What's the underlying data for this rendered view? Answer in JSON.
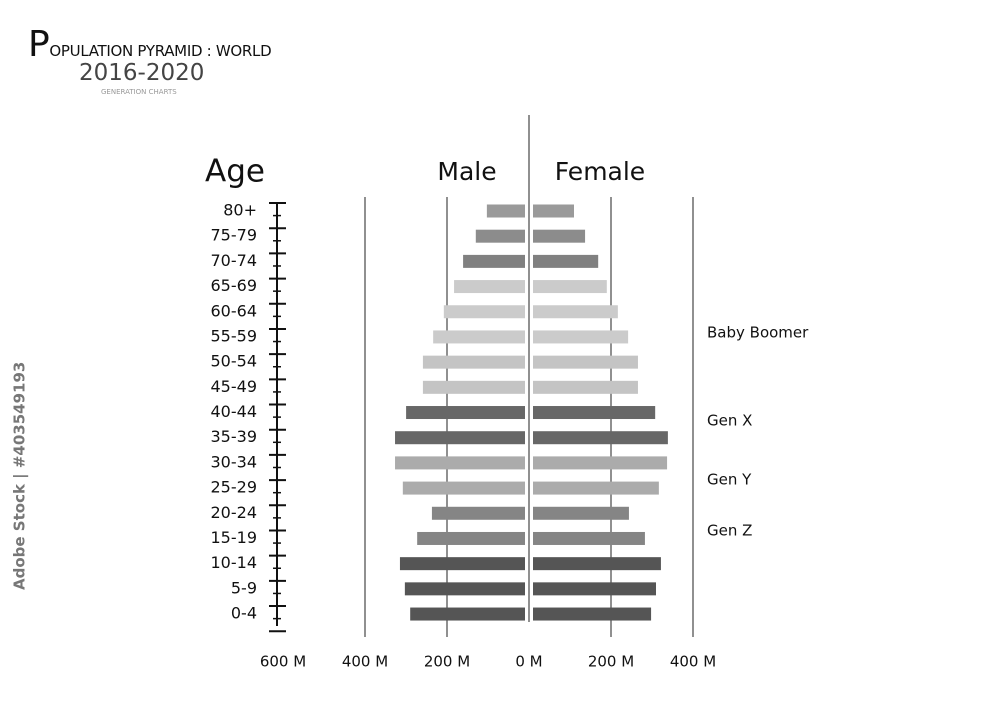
{
  "chart_data": {
    "type": "population-pyramid",
    "title": "POPULATION PYRAMID : WORLD",
    "subtitle": "2016-2020",
    "caption": "GENERATION CHARTS",
    "y_axis_label": "Age",
    "categories": [
      "80+",
      "75-79",
      "70-74",
      "65-69",
      "60-64",
      "55-59",
      "50-54",
      "45-49",
      "40-44",
      "35-39",
      "30-34",
      "25-29",
      "20-24",
      "15-19",
      "10-14",
      "5-9",
      "0-4"
    ],
    "bar_colors": [
      "#9a9a9a",
      "#8c8c8c",
      "#808080",
      "#cbcbcb",
      "#cbcbcb",
      "#cbcbcb",
      "#c4c4c4",
      "#c4c4c4",
      "#676767",
      "#676767",
      "#ababab",
      "#ababab",
      "#858585",
      "#858585",
      "#555555",
      "#555555",
      "#555555"
    ],
    "series": [
      {
        "name": "Male",
        "side": "left",
        "values": [
          93,
          120,
          151,
          173,
          198,
          224,
          249,
          249,
          290,
          317,
          317,
          298,
          227,
          263,
          305,
          293,
          280
        ]
      },
      {
        "name": "Female",
        "side": "right",
        "values": [
          100,
          127,
          159,
          180,
          207,
          232,
          256,
          256,
          298,
          329,
          327,
          307,
          234,
          273,
          312,
          300,
          288
        ]
      }
    ],
    "xlim": [
      0,
      600
    ],
    "xticks_left": [
      {
        "value": 600,
        "label": "600 M"
      },
      {
        "value": 400,
        "label": "400 M"
      },
      {
        "value": 200,
        "label": "200 M"
      },
      {
        "value": 0,
        "label": "0 M"
      }
    ],
    "xticks_right": [
      {
        "value": 200,
        "label": "200 M"
      },
      {
        "value": 400,
        "label": "400 M"
      }
    ],
    "grid_values": [
      200,
      400
    ],
    "annotations": [
      "Baby Boomer",
      "Gen X",
      "Gen Y",
      "Gen Z"
    ],
    "watermark": "Adobe Stock | #403549193"
  }
}
